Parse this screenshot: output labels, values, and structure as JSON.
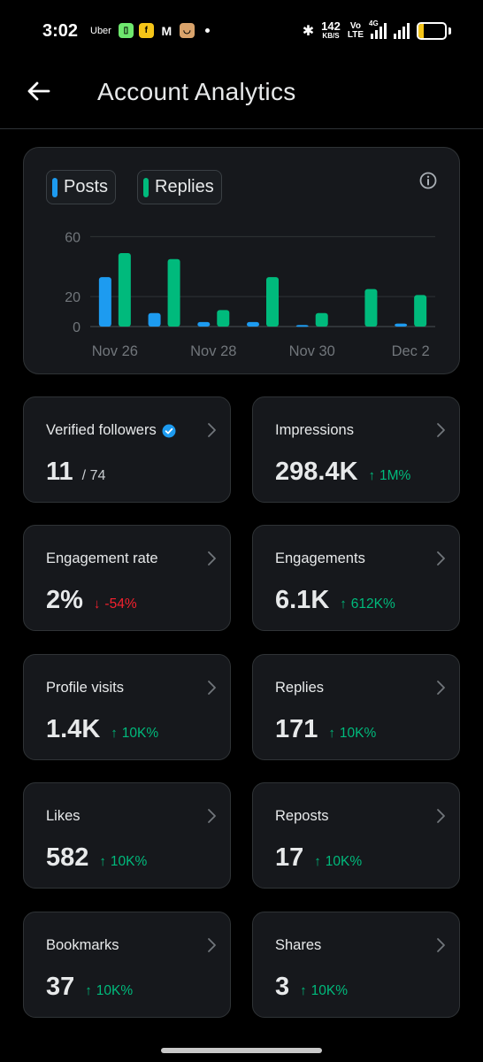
{
  "status_bar": {
    "time": "3:02",
    "apps": [
      "Uber",
      "phonepe-icon",
      "flipkart-icon",
      "gmail-icon",
      "store-icon"
    ],
    "uber_label": "Uber",
    "speed_value": "142",
    "speed_unit": "KB/S",
    "volte_top": "Vo",
    "volte_bottom": "LTE",
    "network_label": "4G",
    "battery": "19",
    "battery_level": 0.19
  },
  "header": {
    "title": "Account Analytics"
  },
  "chart_data": {
    "type": "bar",
    "categories": [
      "Nov 26",
      "Nov 27",
      "Nov 28",
      "Nov 29",
      "Nov 30",
      "Dec 1",
      "Dec 2"
    ],
    "x_tick_labels": [
      "Nov 26",
      "Nov 28",
      "Nov 30",
      "Dec 2"
    ],
    "y_ticks": [
      0,
      20,
      60
    ],
    "ylim": [
      0,
      62
    ],
    "series": [
      {
        "name": "Posts",
        "color": "#1d9bf0",
        "values": [
          33,
          9,
          3,
          3,
          1,
          0,
          2
        ]
      },
      {
        "name": "Replies",
        "color": "#00ba7c",
        "values": [
          49,
          45,
          11,
          33,
          9,
          25,
          21
        ]
      }
    ],
    "grid": true,
    "legend_position": "top-left"
  },
  "metrics": [
    {
      "label": "Verified followers",
      "value": "11",
      "sub": "/ 74",
      "change": "",
      "direction": "none",
      "verified_badge": true
    },
    {
      "label": "Impressions",
      "value": "298.4K",
      "sub": "",
      "change": "1M%",
      "direction": "up",
      "verified_badge": false
    },
    {
      "label": "Engagement rate",
      "value": "2%",
      "sub": "",
      "change": "-54%",
      "direction": "down",
      "verified_badge": false
    },
    {
      "label": "Engagements",
      "value": "6.1K",
      "sub": "",
      "change": "612K%",
      "direction": "up",
      "verified_badge": false
    },
    {
      "label": "Profile visits",
      "value": "1.4K",
      "sub": "",
      "change": "10K%",
      "direction": "up",
      "verified_badge": false
    },
    {
      "label": "Replies",
      "value": "171",
      "sub": "",
      "change": "10K%",
      "direction": "up",
      "verified_badge": false
    },
    {
      "label": "Likes",
      "value": "582",
      "sub": "",
      "change": "10K%",
      "direction": "up",
      "verified_badge": false
    },
    {
      "label": "Reposts",
      "value": "17",
      "sub": "",
      "change": "10K%",
      "direction": "up",
      "verified_badge": false
    },
    {
      "label": "Bookmarks",
      "value": "37",
      "sub": "",
      "change": "10K%",
      "direction": "up",
      "verified_badge": false
    },
    {
      "label": "Shares",
      "value": "3",
      "sub": "",
      "change": "10K%",
      "direction": "up",
      "verified_badge": false
    }
  ],
  "colors": {
    "up": "#00ba7c",
    "down": "#f4212e",
    "verified": "#1d9bf0",
    "card_bg": "#16181c",
    "border": "#2f3336"
  }
}
